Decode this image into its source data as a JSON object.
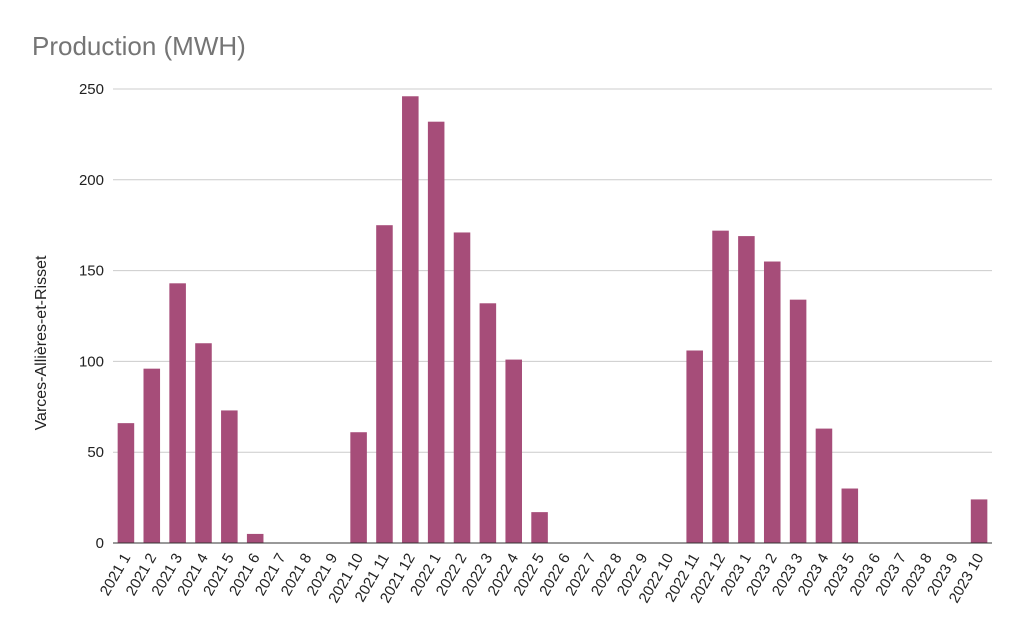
{
  "chart_data": {
    "type": "bar",
    "title": "Production (MWH)",
    "xlabel": "",
    "ylabel": "Varces-Allières-et-Risset",
    "ylim": [
      0,
      250
    ],
    "yticks": [
      0,
      50,
      100,
      150,
      200,
      250
    ],
    "grid": true,
    "legend": "none",
    "bar_color": "#a64d79",
    "categories": [
      "2021 1",
      "2021 2",
      "2021 3",
      "2021 4",
      "2021 5",
      "2021 6",
      "2021 7",
      "2021 8",
      "2021 9",
      "2021 10",
      "2021 11",
      "2021 12",
      "2022 1",
      "2022 2",
      "2022 3",
      "2022 4",
      "2022 5",
      "2022 6",
      "2022 7",
      "2022 8",
      "2022 9",
      "2022 10",
      "2022 11",
      "2022 12",
      "2023 1",
      "2023 2",
      "2023 3",
      "2023 4",
      "2023 5",
      "2023 6",
      "2023 7",
      "2023 8",
      "2023 9",
      "2023 10"
    ],
    "values": [
      66,
      96,
      143,
      110,
      73,
      5,
      0,
      0,
      0,
      61,
      175,
      246,
      232,
      171,
      132,
      101,
      17,
      0,
      0,
      0,
      0,
      0,
      106,
      172,
      169,
      155,
      134,
      63,
      30,
      0,
      0,
      0,
      0,
      24
    ]
  }
}
